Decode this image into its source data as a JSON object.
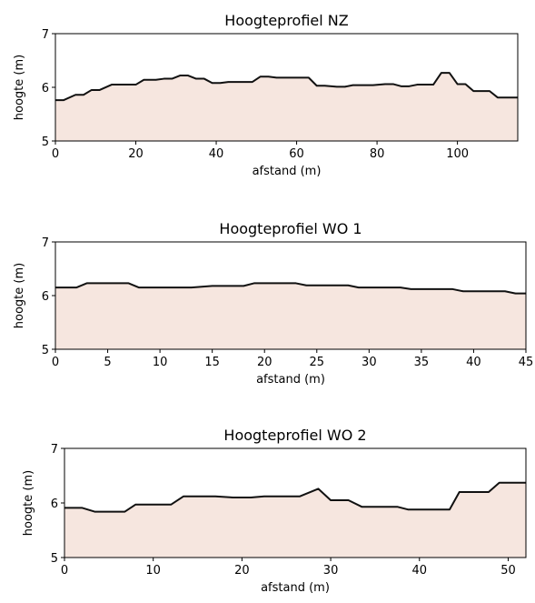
{
  "chart_data": [
    {
      "type": "area",
      "title": "Hoogteprofiel NZ",
      "xlabel": "afstand (m)",
      "ylabel": "hoogte (m)",
      "xlim": [
        0,
        115
      ],
      "ylim": [
        5,
        7
      ],
      "xticks": [
        0,
        20,
        40,
        60,
        80,
        100
      ],
      "yticks": [
        5,
        6,
        7
      ],
      "x": [
        0,
        2,
        5,
        7,
        9,
        11,
        14,
        17,
        20,
        22,
        25,
        27,
        29,
        31,
        33,
        35,
        37,
        39,
        41,
        43,
        45,
        47,
        49,
        51,
        53,
        55,
        57,
        59,
        61,
        63,
        65,
        67,
        70,
        72,
        74,
        77,
        79,
        82,
        84,
        86,
        88,
        90,
        92,
        94,
        96,
        98,
        100,
        102,
        104,
        106,
        108,
        110,
        112,
        115
      ],
      "y": [
        5.76,
        5.76,
        5.86,
        5.86,
        5.95,
        5.95,
        6.05,
        6.05,
        6.05,
        6.14,
        6.14,
        6.16,
        6.16,
        6.22,
        6.22,
        6.16,
        6.16,
        6.08,
        6.08,
        6.1,
        6.1,
        6.1,
        6.1,
        6.2,
        6.2,
        6.18,
        6.18,
        6.18,
        6.18,
        6.18,
        6.03,
        6.03,
        6.01,
        6.01,
        6.04,
        6.04,
        6.04,
        6.06,
        6.06,
        6.02,
        6.02,
        6.05,
        6.05,
        6.05,
        6.27,
        6.27,
        6.06,
        6.06,
        5.93,
        5.93,
        5.93,
        5.81,
        5.81,
        5.81
      ]
    },
    {
      "type": "area",
      "title": "Hoogteprofiel WO 1",
      "xlabel": "afstand (m)",
      "ylabel": "hoogte (m)",
      "xlim": [
        0,
        45
      ],
      "ylim": [
        5,
        7
      ],
      "xticks": [
        0,
        5,
        10,
        15,
        20,
        25,
        30,
        35,
        40,
        45
      ],
      "yticks": [
        5,
        6,
        7
      ],
      "x": [
        0,
        2,
        3,
        5,
        7,
        8,
        10,
        13,
        15,
        18,
        19,
        21,
        23,
        24,
        26,
        28,
        29,
        31,
        33,
        34,
        36,
        38,
        39,
        41,
        43,
        44,
        45
      ],
      "y": [
        6.15,
        6.15,
        6.23,
        6.23,
        6.23,
        6.15,
        6.15,
        6.15,
        6.18,
        6.18,
        6.23,
        6.23,
        6.23,
        6.19,
        6.19,
        6.19,
        6.15,
        6.15,
        6.15,
        6.12,
        6.12,
        6.12,
        6.08,
        6.08,
        6.08,
        6.04,
        6.04
      ]
    },
    {
      "type": "area",
      "title": "Hoogteprofiel WO 2",
      "xlabel": "afstand (m)",
      "ylabel": "hoogte (m)",
      "xlim": [
        0,
        52
      ],
      "ylim": [
        5,
        7
      ],
      "xticks": [
        0,
        10,
        20,
        30,
        40,
        50
      ],
      "yticks": [
        5,
        6,
        7
      ],
      "x": [
        0,
        2,
        3.4,
        5,
        6.8,
        8,
        10.2,
        12,
        13.4,
        15,
        17,
        19,
        21,
        22.5,
        24,
        26.5,
        28.6,
        30,
        32,
        33.5,
        35,
        37.5,
        38.7,
        40,
        42,
        43.4,
        44.5,
        46,
        47.8,
        49,
        50.5,
        52
      ],
      "y": [
        5.91,
        5.91,
        5.84,
        5.84,
        5.84,
        5.97,
        5.97,
        5.97,
        6.12,
        6.12,
        6.12,
        6.1,
        6.1,
        6.12,
        6.12,
        6.12,
        6.26,
        6.05,
        6.05,
        5.93,
        5.93,
        5.93,
        5.88,
        5.88,
        5.88,
        5.88,
        6.2,
        6.2,
        6.2,
        6.37,
        6.37,
        6.37
      ]
    }
  ]
}
